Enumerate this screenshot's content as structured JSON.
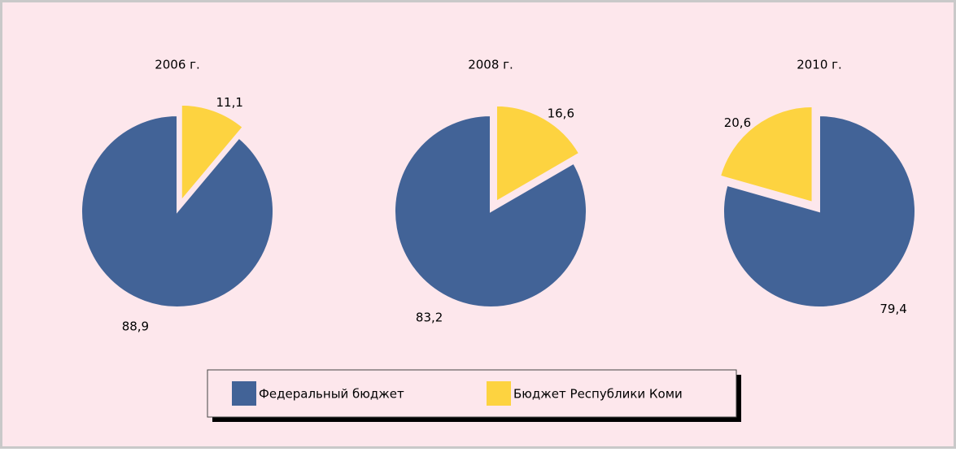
{
  "chart_data": [
    {
      "type": "pie",
      "title": "2006 г.",
      "categories": [
        "Бюджет Республики Коми",
        "Федеральный бюджет"
      ],
      "values": [
        11.1,
        88.9
      ],
      "value_labels": [
        "11,1",
        "88,9"
      ],
      "colors": [
        "#fdd340",
        "#426397"
      ]
    },
    {
      "type": "pie",
      "title": "2008 г.",
      "categories": [
        "Бюджет Республики Коми",
        "Федеральный бюджет"
      ],
      "values": [
        16.6,
        83.2
      ],
      "value_labels": [
        "16,6",
        "83,2"
      ],
      "colors": [
        "#fdd340",
        "#426397"
      ]
    },
    {
      "type": "pie",
      "title": "2010 г.",
      "categories": [
        "Федеральный бюджет",
        "Бюджет Республики Коми"
      ],
      "values": [
        79.4,
        20.6
      ],
      "value_labels": [
        "79,4",
        "20,6"
      ],
      "colors": [
        "#426397",
        "#fdd340"
      ]
    }
  ]
}
